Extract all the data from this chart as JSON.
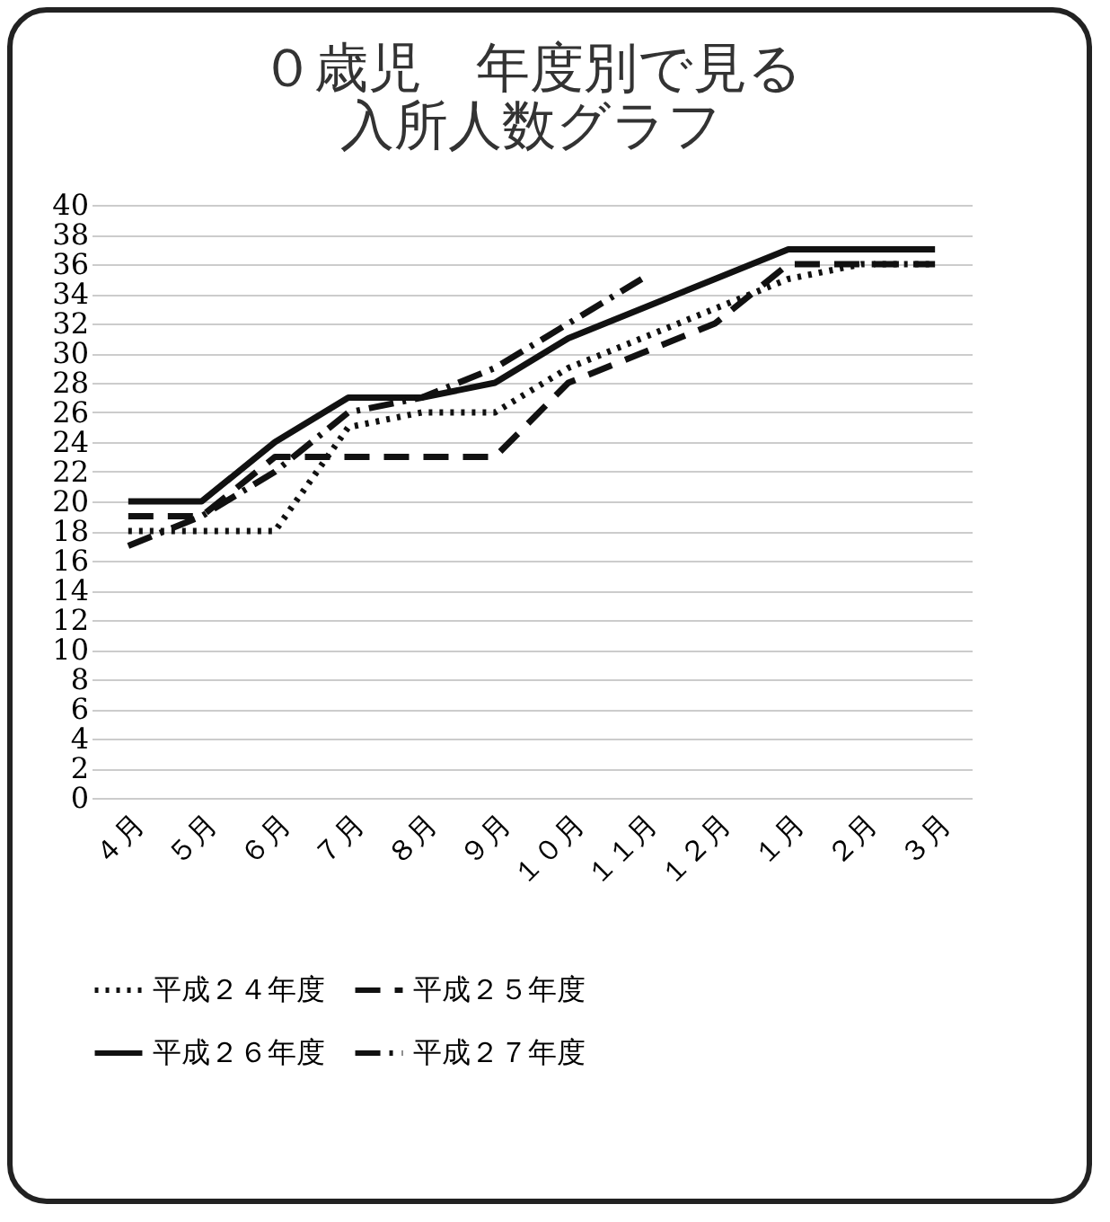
{
  "chart_data": {
    "type": "line",
    "title": "０歳児　年度別で見る",
    "subtitle": "入所人数グラフ",
    "categories": [
      "４月",
      "５月",
      "６月",
      "７月",
      "８月",
      "９月",
      "１０月",
      "１１月",
      "１２月",
      "１月",
      "２月",
      "３月"
    ],
    "series": [
      {
        "name": "平成２４年度",
        "color": "#111111",
        "line_style": "dotted",
        "values": [
          18,
          18,
          18,
          25,
          26,
          26,
          29,
          31,
          33,
          35,
          36,
          36
        ]
      },
      {
        "name": "平成２５年度",
        "color": "#111111",
        "line_style": "dashed",
        "values": [
          19,
          19,
          23,
          23,
          23,
          23,
          28,
          30,
          32,
          36,
          36,
          36
        ]
      },
      {
        "name": "平成２６年度",
        "color": "#111111",
        "line_style": "solid",
        "values": [
          20,
          20,
          24,
          27,
          27,
          28,
          31,
          33,
          35,
          37,
          37,
          37
        ]
      },
      {
        "name": "平成２７年度",
        "color": "#111111",
        "line_style": "dashdot",
        "values": [
          17,
          19,
          22,
          26,
          27,
          29,
          32,
          35,
          null,
          null,
          null,
          null
        ]
      }
    ],
    "ylim": [
      0,
      40
    ],
    "yticks": [
      0,
      2,
      4,
      6,
      8,
      10,
      12,
      14,
      16,
      18,
      20,
      22,
      24,
      26,
      28,
      30,
      32,
      34,
      36,
      38,
      40
    ],
    "grid": "y",
    "legend": "bottom",
    "marker": "none"
  }
}
